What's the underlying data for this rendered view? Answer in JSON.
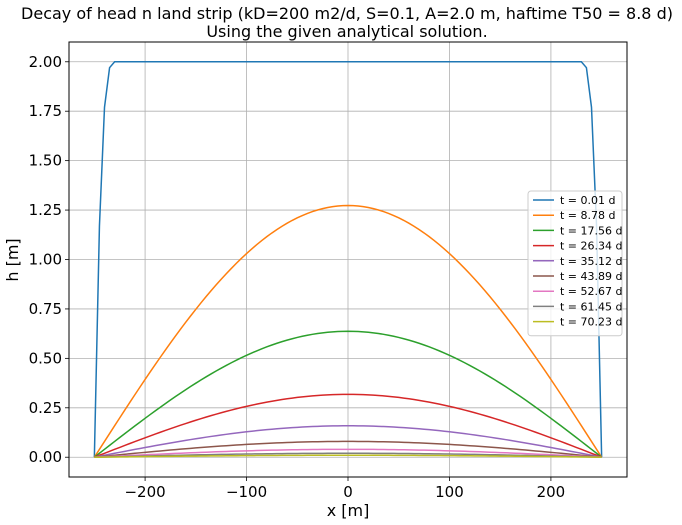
{
  "chart_data": {
    "type": "line",
    "title": "Decay of head n land strip (kD=200 m2/d, S=0.1, A=2.0 m, haftime T50 = 8.8 d)",
    "subtitle": "Using the given analytical solution.",
    "xlabel": "x [m]",
    "ylabel": "h [m]",
    "xlim": [
      -275,
      275
    ],
    "ylim": [
      -0.1,
      2.1
    ],
    "xticks": [
      -200,
      -100,
      0,
      100,
      200
    ],
    "xtick_labels": [
      "−200",
      "−100",
      "0",
      "100",
      "200"
    ],
    "yticks": [
      0.0,
      0.25,
      0.5,
      0.75,
      1.0,
      1.25,
      1.5,
      1.75,
      2.0
    ],
    "ytick_labels": [
      "0.00",
      "0.25",
      "0.50",
      "0.75",
      "1.00",
      "1.25",
      "1.50",
      "1.75",
      "2.00"
    ],
    "grid": true,
    "legend_position": "right",
    "series": [
      {
        "name": "t = 0.01 d",
        "color": "#1f77b4",
        "x": [
          -250,
          -245,
          -240,
          -235,
          -230,
          230,
          235,
          240,
          245,
          250
        ],
        "y": [
          0.0,
          1.17,
          1.77,
          1.97,
          2.0,
          2.0,
          1.97,
          1.77,
          1.17,
          0.0
        ]
      },
      {
        "name": "t = 8.78 d",
        "color": "#ff7f0e",
        "peak": 1.273
      },
      {
        "name": "t = 17.56 d",
        "color": "#2ca02c",
        "peak": 0.637
      },
      {
        "name": "t = 26.34 d",
        "color": "#d62728",
        "peak": 0.318
      },
      {
        "name": "t = 35.12 d",
        "color": "#9467bd",
        "peak": 0.159
      },
      {
        "name": "t = 43.89 d",
        "color": "#8c564b",
        "peak": 0.08
      },
      {
        "name": "t = 52.67 d",
        "color": "#e377c2",
        "peak": 0.04
      },
      {
        "name": "t = 61.45 d",
        "color": "#7f7f7f",
        "peak": 0.02
      },
      {
        "name": "t = 70.23 d",
        "color": "#bcbd22",
        "peak": 0.01
      }
    ]
  }
}
